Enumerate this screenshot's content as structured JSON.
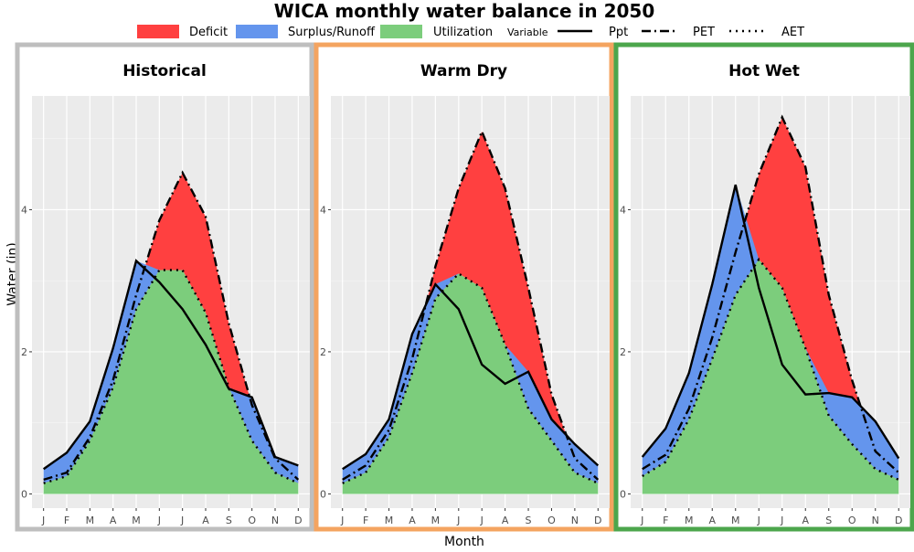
{
  "title": "WICA monthly water balance in 2050",
  "legend": {
    "fills": [
      {
        "label": "Deficit",
        "color": "#FF4040"
      },
      {
        "label": "Surplus/Runoff",
        "color": "#6495ED"
      },
      {
        "label": "Utilization",
        "color": "#7CCD7C"
      }
    ],
    "variable_title": "Variable",
    "lines": [
      {
        "label": "Ppt",
        "style": "solid"
      },
      {
        "label": "PET",
        "style": "dashdot"
      },
      {
        "label": "AET",
        "style": "dotted"
      }
    ]
  },
  "axes": {
    "xlabel": "Month",
    "ylabel": "Water (in)"
  },
  "chart_data": {
    "type": "area",
    "categories": [
      "J",
      "F",
      "M",
      "A",
      "M",
      "J",
      "J",
      "A",
      "S",
      "O",
      "N",
      "D"
    ],
    "ylim": [
      -0.2,
      5.6
    ],
    "yticks": [
      0,
      2,
      4
    ],
    "grid": true,
    "legend_position": "top",
    "panels": [
      {
        "title": "Historical",
        "border_color": "#BEBEBE",
        "ppt": [
          0.35,
          0.58,
          1.02,
          2.05,
          3.28,
          2.98,
          2.6,
          2.1,
          1.48,
          1.36,
          0.52,
          0.4
        ],
        "pet": [
          0.2,
          0.3,
          0.8,
          1.6,
          2.8,
          3.85,
          4.52,
          3.9,
          2.4,
          1.25,
          0.5,
          0.2
        ],
        "aet": [
          0.15,
          0.25,
          0.75,
          1.5,
          2.6,
          3.15,
          3.15,
          2.55,
          1.5,
          0.75,
          0.3,
          0.15
        ]
      },
      {
        "title": "Warm Dry",
        "border_color": "#F4A460",
        "ppt": [
          0.35,
          0.56,
          1.05,
          2.25,
          2.95,
          2.6,
          1.82,
          1.55,
          1.72,
          1.05,
          0.7,
          0.4
        ],
        "pet": [
          0.2,
          0.4,
          0.9,
          1.9,
          3.2,
          4.3,
          5.1,
          4.3,
          2.9,
          1.4,
          0.5,
          0.2
        ],
        "aet": [
          0.15,
          0.3,
          0.8,
          1.7,
          2.75,
          3.1,
          2.9,
          2.1,
          1.2,
          0.75,
          0.3,
          0.15
        ]
      },
      {
        "title": "Hot Wet",
        "border_color": "#4CA64C",
        "ppt": [
          0.52,
          0.92,
          1.7,
          2.95,
          4.35,
          2.9,
          1.82,
          1.4,
          1.42,
          1.36,
          1.02,
          0.5
        ],
        "pet": [
          0.35,
          0.55,
          1.2,
          2.2,
          3.4,
          4.5,
          5.3,
          4.6,
          2.8,
          1.6,
          0.6,
          0.3
        ],
        "aet": [
          0.25,
          0.45,
          1.05,
          1.9,
          2.8,
          3.3,
          2.9,
          2.05,
          1.1,
          0.7,
          0.35,
          0.2
        ]
      }
    ]
  }
}
